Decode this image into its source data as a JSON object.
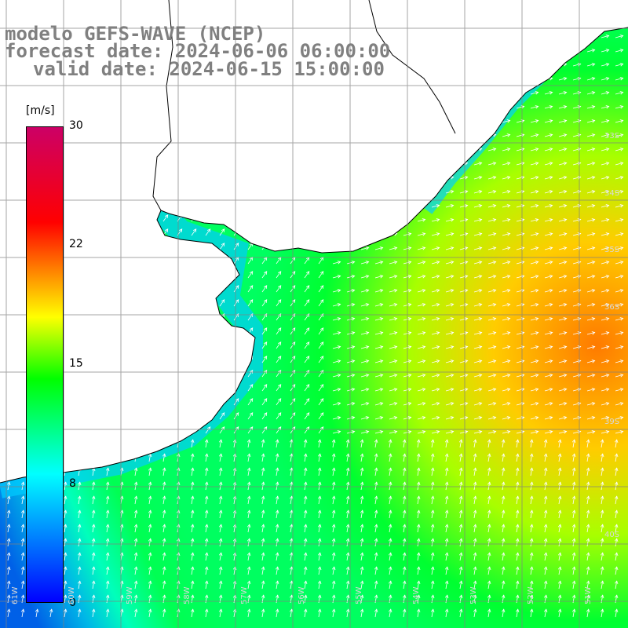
{
  "title": {
    "model": "modelo GEFS-WAVE (NCEP)",
    "forecast": "forecast date: 2024-06-06 06:00:00",
    "valid": "valid date: 2024-06-15 15:00:00"
  },
  "colorbar": {
    "unit": "[m/s]",
    "ticks": [
      "30",
      "22",
      "15",
      "8",
      "0"
    ],
    "colors": [
      "#0000ff",
      "#00ffff",
      "#00ff00",
      "#ffff00",
      "#ff8000",
      "#ff0000",
      "#cc0066"
    ]
  },
  "lat_labels": [
    "33S",
    "34S",
    "35S",
    "36S",
    "39S",
    "40S"
  ],
  "lon_labels": [
    "61W",
    "60W",
    "59W",
    "58W",
    "57W",
    "56W",
    "55W",
    "54W",
    "53W",
    "52W",
    "51W"
  ],
  "colors": {
    "land": "#ffffff",
    "coastline": "#000000",
    "grid": "#808080",
    "arrows": "#ffffff",
    "title_text": "#808080"
  }
}
